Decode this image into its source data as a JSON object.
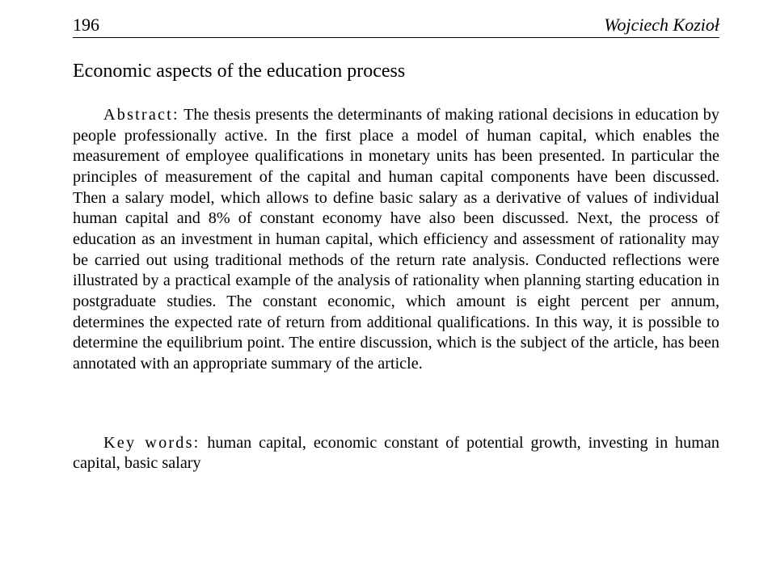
{
  "page_number": "196",
  "author": "Wojciech Kozioł",
  "title": "Economic aspects of the education process",
  "abstract_label": "Abstract:",
  "abstract_text": " The thesis presents the determinants of making rational decisions in education by people professionally active. In the first place a model of human capital, which enables the measurement of employee qualifications in monetary units has been presented. In particular the principles of measurement of the capital and human capital components have been discussed. Then a salary model, which allows to define basic salary as a derivative of values of individual human capital and 8% of constant economy have also been discussed. Next, the process of education as an investment in human capital, which efficiency and assessment of rationality may be carried out using traditional methods of the return rate analysis. Conducted reflections were illustrated by a practical example of the analysis of rationality when planning starting education in postgraduate studies. The constant economic, which amount is eight percent per annum, determines the expected rate of return from additional qualifications. In this way, it is possible to determine the equilibrium point. The entire discussion, which is the subject of the article, has been annotated with an appropriate summary of the article.",
  "keywords_label": "Key words:",
  "keywords_text": " human capital, economic constant of potential growth, investing in human capital, basic salary"
}
